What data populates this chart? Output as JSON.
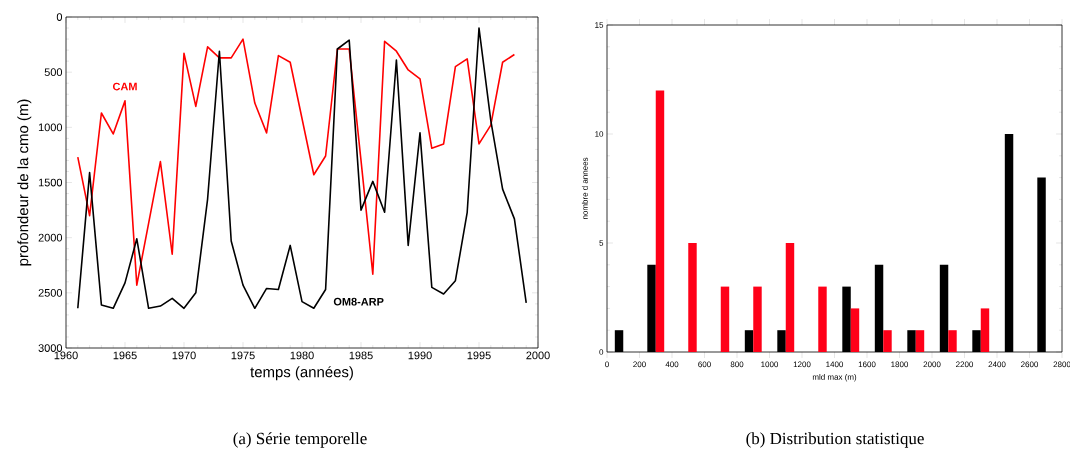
{
  "chart_data": [
    {
      "type": "line",
      "xlabel": "temps (années)",
      "ylabel": "profondeur de la cmo (m)",
      "annotations": [
        "(a) Série temporelle"
      ],
      "x": [
        1961,
        1962,
        1963,
        1964,
        1965,
        1966,
        1967,
        1968,
        1969,
        1970,
        1971,
        1972,
        1973,
        1974,
        1975,
        1976,
        1977,
        1978,
        1979,
        1980,
        1981,
        1982,
        1983,
        1984,
        1985,
        1986,
        1987,
        1988,
        1989,
        1990,
        1991,
        1992,
        1993,
        1994,
        1995,
        1996,
        1997,
        1998,
        1999
      ],
      "series": [
        {
          "name": "CAM",
          "color": "#ff0000",
          "values": [
            1270,
            1800,
            870,
            1060,
            760,
            2430,
            1870,
            1310,
            2150,
            330,
            810,
            270,
            370,
            370,
            200,
            780,
            1050,
            350,
            410,
            920,
            1430,
            1260,
            290,
            290,
            1300,
            2330,
            220,
            310,
            480,
            560,
            1190,
            1150,
            450,
            380,
            1150,
            980,
            410,
            340,
            null
          ]
        },
        {
          "name": "OM8-ARP",
          "color": "#000000",
          "values": [
            2640,
            1410,
            2610,
            2640,
            2410,
            2010,
            2640,
            2620,
            2550,
            2640,
            2500,
            1650,
            310,
            2030,
            2430,
            2640,
            2460,
            2470,
            2070,
            2580,
            2640,
            2470,
            290,
            210,
            1750,
            1490,
            1770,
            390,
            2070,
            1050,
            2450,
            2510,
            2390,
            1770,
            100,
            940,
            1560,
            1830,
            2590
          ]
        }
      ],
      "xlim": [
        1960,
        2000
      ],
      "xticks": [
        1960,
        1965,
        1970,
        1975,
        1980,
        1985,
        1990,
        1995,
        2000
      ],
      "ylim": [
        3000,
        0
      ],
      "yticks": [
        0,
        500,
        1000,
        1500,
        2000,
        2500,
        3000
      ]
    },
    {
      "type": "bar",
      "xlabel": "mld max (m)",
      "ylabel": "nombre d annees",
      "annotations": [
        "(b) Distribution statistique"
      ],
      "x": [
        100,
        300,
        500,
        700,
        900,
        1100,
        1300,
        1500,
        1700,
        1900,
        2100,
        2300,
        2500,
        2700
      ],
      "series": [
        {
          "color": "#000000",
          "values": [
            1,
            4,
            0,
            0,
            1,
            1,
            0,
            3,
            4,
            1,
            4,
            1,
            10,
            8
          ]
        },
        {
          "color": "#ff0018",
          "values": [
            0,
            12,
            5,
            3,
            3,
            5,
            3,
            2,
            1,
            1,
            1,
            2,
            0,
            0
          ]
        }
      ],
      "xlim": [
        0,
        2800
      ],
      "xticks": [
        0,
        200,
        400,
        600,
        800,
        1000,
        1200,
        1400,
        1600,
        1800,
        2000,
        2200,
        2400,
        2600,
        2800
      ],
      "ylim": [
        0,
        15
      ],
      "yticks": [
        0,
        5,
        10,
        15
      ]
    }
  ]
}
